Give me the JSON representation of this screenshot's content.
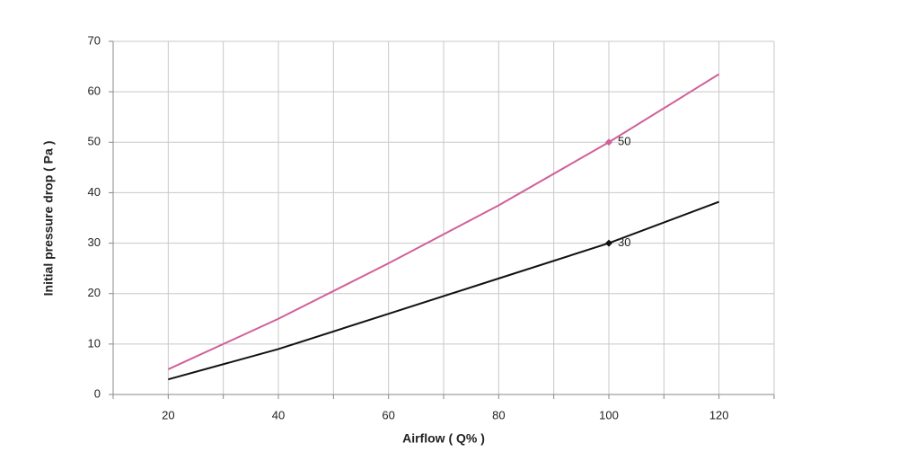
{
  "chart_data": {
    "type": "line",
    "xlabel": "Airflow ( Q% )",
    "ylabel": "Initial pressure drop ( Pa )",
    "x": [
      20,
      40,
      60,
      80,
      100,
      120
    ],
    "series": [
      {
        "name": "50",
        "color": "#d0609a",
        "values": [
          5,
          15,
          26,
          37.5,
          50,
          63.5
        ]
      },
      {
        "name": "30",
        "color": "#111111",
        "values": [
          3,
          9,
          16,
          23,
          30,
          38.2
        ]
      }
    ],
    "label_at": 100,
    "xlim": [
      10,
      130
    ],
    "xticks": [
      20,
      40,
      60,
      80,
      100,
      120
    ],
    "xminorticks": [
      10,
      30,
      50,
      70,
      90,
      110,
      130
    ],
    "ylim": [
      0,
      70
    ],
    "yticks": [
      0,
      10,
      20,
      30,
      40,
      50,
      60,
      70
    ],
    "grid": true
  }
}
